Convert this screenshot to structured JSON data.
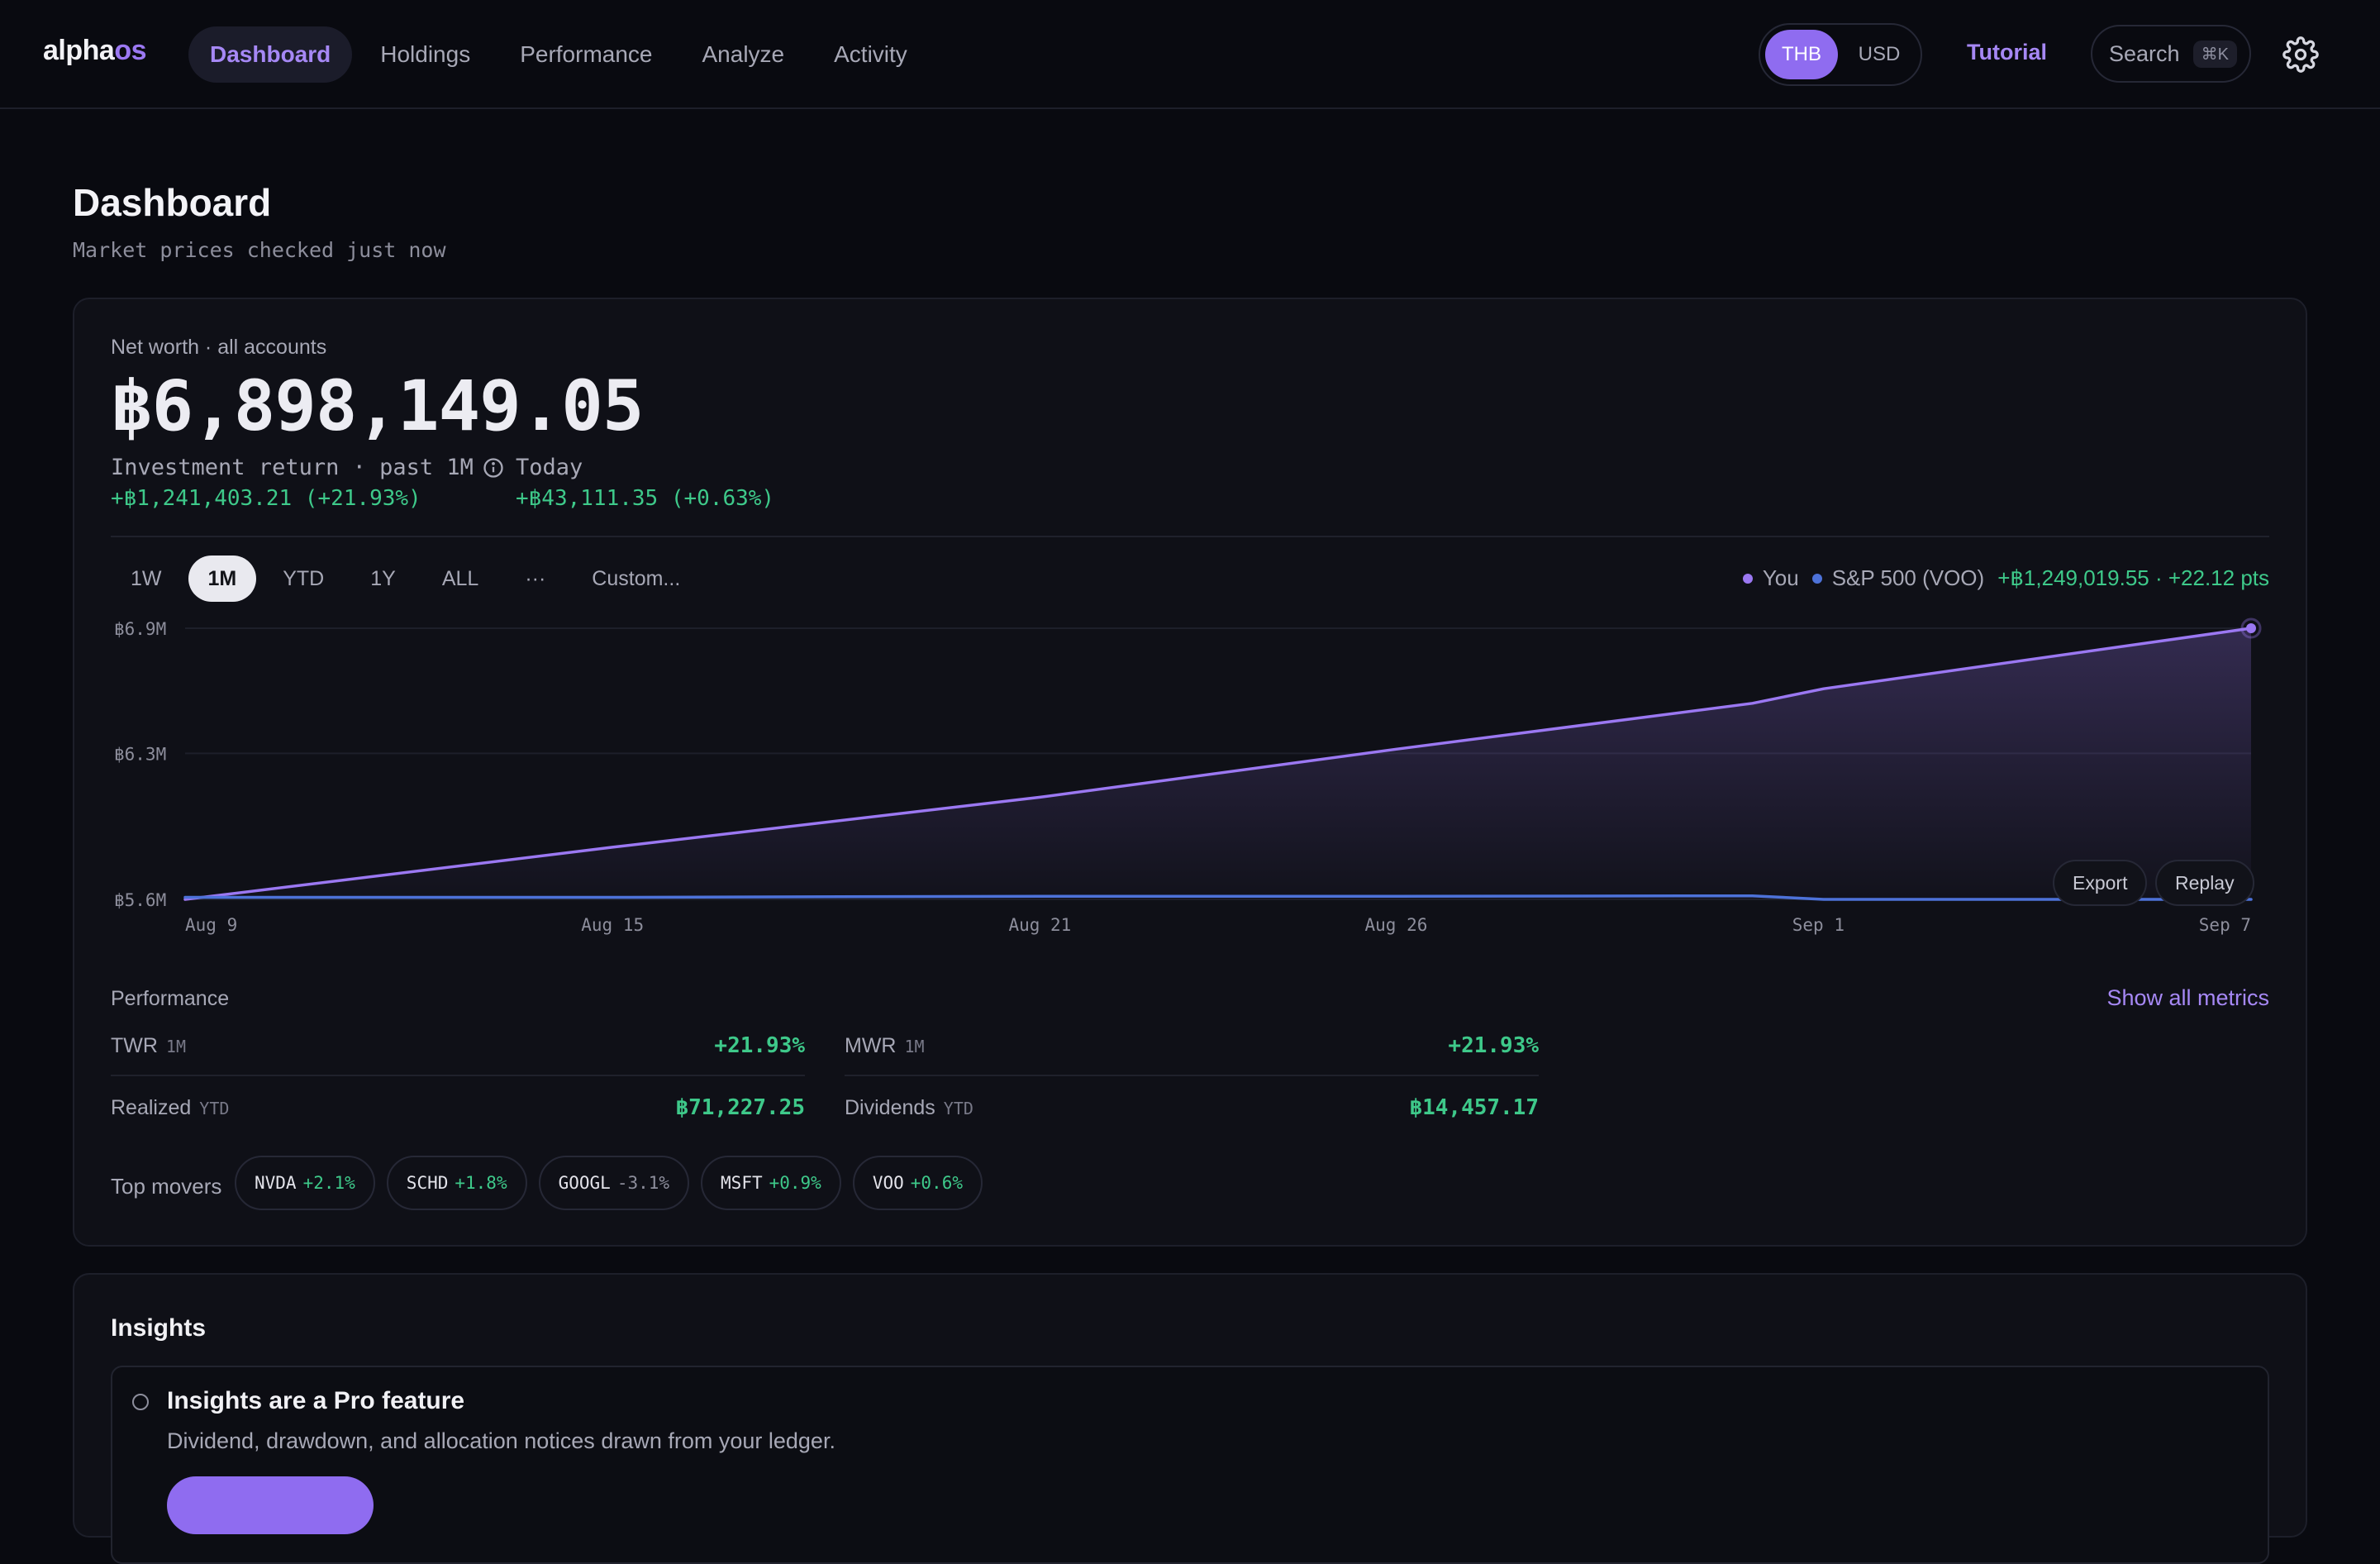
{
  "app": {
    "logo_main": "alpha",
    "logo_accent": "os"
  },
  "nav": {
    "items": [
      {
        "label": "Dashboard",
        "active": true
      },
      {
        "label": "Holdings",
        "active": false
      },
      {
        "label": "Performance",
        "active": false
      },
      {
        "label": "Analyze",
        "active": false
      },
      {
        "label": "Activity",
        "active": false
      }
    ]
  },
  "currency": {
    "options": [
      "THB",
      "USD"
    ],
    "selected": "THB"
  },
  "header": {
    "tutorial": "Tutorial",
    "search_label": "Search",
    "search_shortcut": "⌘K",
    "settings_icon": "gear-icon"
  },
  "page": {
    "title": "Dashboard",
    "subtitle": "Market prices checked just now"
  },
  "net_worth": {
    "label": "Net worth · all accounts",
    "value": "฿6,898,149.05",
    "return_label": "Investment return · past 1M",
    "return_value": "+฿1,241,403.21 (+21.93%)",
    "today_label": "Today",
    "today_value": "+฿43,111.35 (+0.63%)"
  },
  "ranges": {
    "items": [
      "1W",
      "1M",
      "YTD",
      "1Y",
      "ALL",
      "···",
      "Custom..."
    ],
    "selected": "1M"
  },
  "legend": {
    "you": "You",
    "benchmark": "S&P 500 (VOO)",
    "summary": "+฿1,249,019.55 · +22.12 pts"
  },
  "chart_buttons": {
    "export": "Export",
    "replay": "Replay"
  },
  "chart_data": {
    "type": "line",
    "y_ticks": [
      "฿6.9M",
      "฿6.3M",
      "฿5.6M"
    ],
    "y_tick_values": [
      6.9,
      6.3,
      5.6
    ],
    "ylim": [
      5.6,
      6.9
    ],
    "x_ticks": [
      "Aug 9",
      "Aug 15",
      "Aug 21",
      "Aug 26",
      "Sep 1",
      "Sep 7"
    ],
    "x_tick_dates": [
      "2024-08-09",
      "2024-08-15",
      "2024-08-21",
      "2024-08-26",
      "2024-09-01",
      "2024-09-07"
    ],
    "xlim": [
      "2024-08-09",
      "2024-09-07"
    ],
    "grid": true,
    "series": [
      {
        "name": "You",
        "color": "#9b78f2",
        "fill": true,
        "x": [
          "2024-08-09",
          "2024-08-15",
          "2024-08-21",
          "2024-08-26",
          "2024-08-31",
          "2024-09-01",
          "2024-09-07"
        ],
        "values": [
          5.6,
          5.85,
          6.09,
          6.32,
          6.54,
          6.61,
          6.9
        ]
      },
      {
        "name": "S&P 500 (VOO)",
        "color": "#4d72d9",
        "fill": false,
        "x": [
          "2024-08-09",
          "2024-08-15",
          "2024-08-21",
          "2024-08-26",
          "2024-08-31",
          "2024-09-01",
          "2024-09-07"
        ],
        "values": [
          5.61,
          5.61,
          5.615,
          5.615,
          5.617,
          5.6,
          5.6
        ]
      }
    ]
  },
  "performance": {
    "title": "Performance",
    "show_all": "Show all metrics",
    "metrics": [
      {
        "name": "TWR",
        "tag": "1M",
        "value": "+21.93%"
      },
      {
        "name": "MWR",
        "tag": "1M",
        "value": "+21.93%"
      },
      {
        "name": "Realized",
        "tag": "YTD",
        "value": "฿71,227.25"
      },
      {
        "name": "Dividends",
        "tag": "YTD",
        "value": "฿14,457.17"
      }
    ]
  },
  "movers": {
    "label": "Top movers",
    "items": [
      {
        "symbol": "NVDA",
        "change": "+2.1%",
        "up": true
      },
      {
        "symbol": "SCHD",
        "change": "+1.8%",
        "up": true
      },
      {
        "symbol": "GOOGL",
        "change": "-3.1%",
        "up": false
      },
      {
        "symbol": "MSFT",
        "change": "+0.9%",
        "up": true
      },
      {
        "symbol": "VOO",
        "change": "+0.6%",
        "up": true
      }
    ]
  },
  "insights": {
    "title": "Insights",
    "heading": "Insights are a Pro feature",
    "body": "Dividend, drawdown, and allocation notices drawn from your ledger."
  },
  "colors": {
    "accent": "#9b78f2",
    "positive": "#3ec98a",
    "benchmark": "#4d72d9",
    "background": "#090a10"
  }
}
